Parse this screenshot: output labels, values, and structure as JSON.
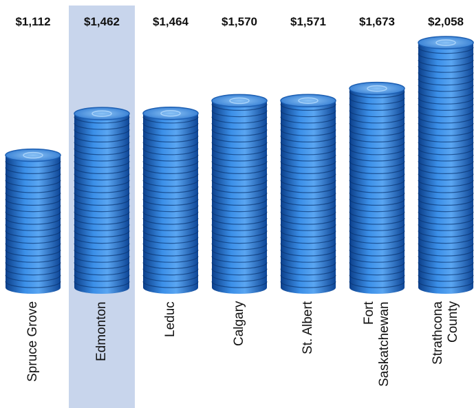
{
  "chart_data": {
    "type": "bar",
    "categories": [
      "Spruce Grove",
      "Edmonton",
      "Leduc",
      "Calgary",
      "St. Albert",
      "Fort Saskatchewan",
      "Strathcona County"
    ],
    "values": [
      1112,
      1462,
      1464,
      1570,
      1571,
      1673,
      2058
    ],
    "value_labels": [
      "$1,112",
      "$1,462",
      "$1,464",
      "$1,570",
      "$1,571",
      "$1,673",
      "$2,058"
    ],
    "color": "#2f7fd6",
    "highlight": 1,
    "highlight_color": "#c8d5ec"
  }
}
